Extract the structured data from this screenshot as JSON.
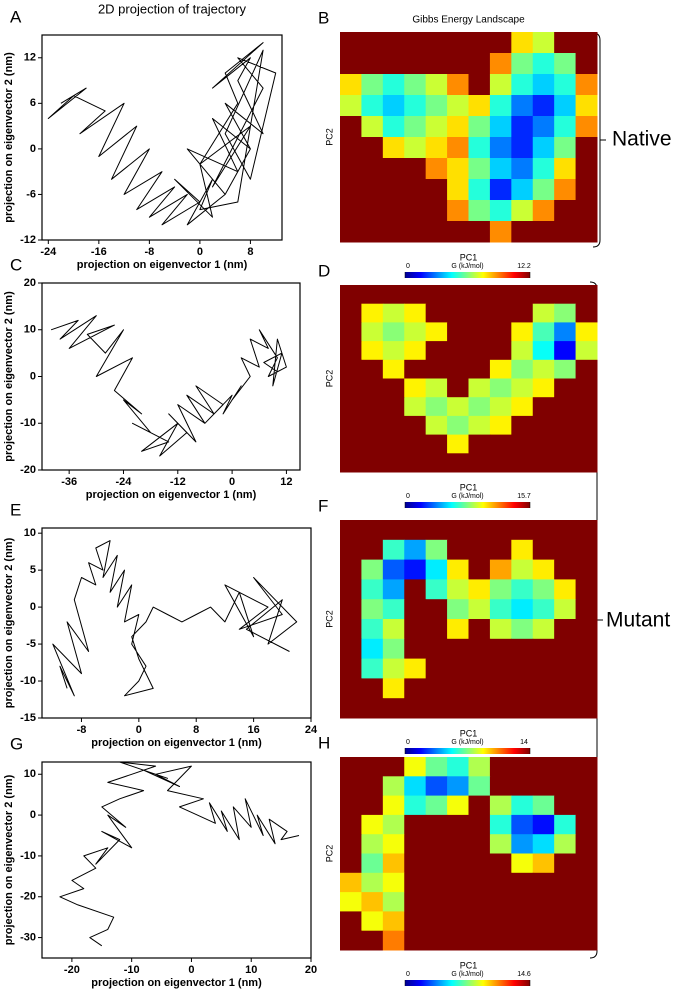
{
  "annotations": [
    "Native",
    "Mutant"
  ],
  "chart_data": [
    {
      "panel": "A",
      "type": "line",
      "title": "2D projection of trajectory",
      "xlabel": "projection on eigenvector 1 (nm)",
      "ylabel": "projection on eigenvector 2 (nm)",
      "color": "#000000",
      "xlim": [
        -25,
        13
      ],
      "ylim": [
        -12,
        15
      ],
      "xticks": [
        -24,
        -16,
        -8,
        0,
        8
      ],
      "yticks": [
        -12,
        -6,
        0,
        6,
        12
      ],
      "x": [
        -22,
        -18,
        -24,
        -20,
        -15,
        -19,
        -12,
        -16,
        -10,
        -14,
        -8,
        -12,
        -6,
        -10,
        -4,
        -8,
        -2,
        -6,
        0,
        -4,
        2,
        0,
        4,
        -2,
        6,
        2,
        8,
        4,
        10,
        6,
        8,
        2,
        10,
        4,
        6,
        0,
        8,
        2,
        10,
        6,
        12,
        8,
        4,
        10,
        6,
        0,
        2,
        -2,
        4,
        8
      ],
      "values": [
        6,
        8,
        4,
        7,
        5,
        2,
        6,
        -1,
        3,
        -4,
        0,
        -6,
        -3,
        -8,
        -5,
        -9,
        -6,
        -10,
        -7,
        -4,
        -9,
        -2,
        -6,
        0,
        -3,
        4,
        0,
        6,
        2,
        9,
        12,
        8,
        14,
        10,
        6,
        -2,
        3,
        -5,
        8,
        12,
        10,
        -4,
        2,
        13,
        -7,
        -8,
        -4,
        -10,
        -6,
        0
      ]
    },
    {
      "panel": "B",
      "type": "heatmap",
      "title": "Gibbs Energy Landscape",
      "xlabel": "PC1",
      "ylabel": "PC2",
      "colorbar_label": "G (kJ/mol)",
      "zlim": [
        0,
        12.2
      ],
      "cticks": [
        0,
        12.2
      ],
      "z": [
        [
          12.2,
          12.2,
          12.2,
          12.2,
          12.2,
          12.2,
          12.2,
          12.2,
          8,
          7,
          12.2,
          12.2
        ],
        [
          12.2,
          12.2,
          12.2,
          12.2,
          12.2,
          12.2,
          12.2,
          9,
          6,
          5,
          6,
          12.2
        ],
        [
          8,
          6,
          5,
          6,
          7,
          9,
          12.2,
          7,
          5,
          4,
          5,
          9
        ],
        [
          7,
          5,
          4,
          5,
          6,
          7,
          8,
          5,
          3,
          2,
          4,
          8
        ],
        [
          12.2,
          7,
          5,
          6,
          7,
          8,
          6,
          4,
          2,
          3,
          5,
          9
        ],
        [
          12.2,
          12.2,
          8,
          7,
          8,
          9,
          5,
          3,
          2,
          4,
          6,
          12.2
        ],
        [
          12.2,
          12.2,
          12.2,
          12.2,
          9,
          8,
          6,
          4,
          3,
          5,
          8,
          12.2
        ],
        [
          12.2,
          12.2,
          12.2,
          12.2,
          12.2,
          8,
          5,
          2,
          4,
          6,
          9,
          12.2
        ],
        [
          12.2,
          12.2,
          12.2,
          12.2,
          12.2,
          9,
          6,
          5,
          7,
          9,
          12.2,
          12.2
        ],
        [
          12.2,
          12.2,
          12.2,
          12.2,
          12.2,
          12.2,
          12.2,
          9,
          12.2,
          12.2,
          12.2,
          12.2
        ]
      ]
    },
    {
      "panel": "C",
      "type": "line",
      "xlabel": "projection on eigenvector 1 (nm)",
      "ylabel": "projection on eigenvector 2 (nm)",
      "color": "#000000",
      "xlim": [
        -42,
        15
      ],
      "ylim": [
        -20,
        20
      ],
      "xticks": [
        -36,
        -24,
        -12,
        0,
        12
      ],
      "yticks": [
        -20,
        -10,
        0,
        10,
        20
      ],
      "x": [
        -40,
        -34,
        -38,
        -30,
        -36,
        -26,
        -32,
        -28,
        -24,
        -30,
        -22,
        -26,
        -20,
        -24,
        -18,
        -22,
        -14,
        -20,
        -12,
        -16,
        -10,
        -14,
        -8,
        -12,
        -6,
        -10,
        -4,
        -8,
        -2,
        -6,
        0,
        -2,
        2,
        0,
        4,
        2,
        6,
        4,
        8,
        6,
        10,
        8,
        12,
        10,
        9,
        11,
        7,
        10
      ],
      "values": [
        10,
        12,
        8,
        13,
        6,
        11,
        9,
        5,
        10,
        0,
        4,
        -3,
        -8,
        -5,
        -12,
        -10,
        -14,
        -16,
        -10,
        -17,
        -12,
        -8,
        -14,
        -6,
        -10,
        -4,
        -8,
        -2,
        -6,
        -10,
        -4,
        -8,
        -2,
        -5,
        0,
        4,
        2,
        8,
        6,
        10,
        4,
        0,
        2,
        8,
        -2,
        5,
        3,
        1
      ]
    },
    {
      "panel": "D",
      "type": "heatmap",
      "xlabel": "PC1",
      "ylabel": "PC2",
      "colorbar_label": "G (kJ/mol)",
      "zlim": [
        0,
        15.7
      ],
      "cticks": [
        0,
        15.7
      ],
      "z": [
        [
          15.7,
          15.7,
          15.7,
          15.7,
          15.7,
          15.7,
          15.7,
          15.7,
          15.7,
          15.7,
          15.7,
          15.7
        ],
        [
          15.7,
          10,
          9,
          10,
          15.7,
          15.7,
          15.7,
          15.7,
          15.7,
          9,
          8,
          15.7
        ],
        [
          15.7,
          9,
          8,
          9,
          10,
          15.7,
          15.7,
          15.7,
          10,
          7,
          4,
          10
        ],
        [
          15.7,
          10,
          9,
          10,
          15.7,
          15.7,
          15.7,
          15.7,
          9,
          6,
          2,
          9
        ],
        [
          15.7,
          15.7,
          10,
          15.7,
          15.7,
          15.7,
          15.7,
          10,
          8,
          9,
          8,
          15.7
        ],
        [
          15.7,
          15.7,
          15.7,
          10,
          9,
          15.7,
          9,
          8,
          9,
          10,
          15.7,
          15.7
        ],
        [
          15.7,
          15.7,
          15.7,
          9,
          8,
          9,
          8,
          9,
          10,
          15.7,
          15.7,
          15.7
        ],
        [
          15.7,
          15.7,
          15.7,
          15.7,
          9,
          8,
          9,
          10,
          15.7,
          15.7,
          15.7,
          15.7
        ],
        [
          15.7,
          15.7,
          15.7,
          15.7,
          15.7,
          10,
          15.7,
          15.7,
          15.7,
          15.7,
          15.7,
          15.7
        ],
        [
          15.7,
          15.7,
          15.7,
          15.7,
          15.7,
          15.7,
          15.7,
          15.7,
          15.7,
          15.7,
          15.7,
          15.7
        ]
      ]
    },
    {
      "panel": "E",
      "type": "line",
      "xlabel": "projection on eigenvector 1 (nm)",
      "ylabel": "projection on eigenvector 2 (nm)",
      "color": "#000000",
      "xlim": [
        -13.5,
        24
      ],
      "ylim": [
        -15,
        10.7
      ],
      "xticks": [
        -8,
        0,
        8,
        16,
        24
      ],
      "yticks": [
        -15,
        -10,
        -5,
        0,
        5,
        10
      ],
      "x": [
        -10,
        -11,
        -9,
        -12,
        -8,
        -10,
        -7,
        -9,
        -8,
        -6,
        -7,
        -5,
        -6,
        -4,
        -5,
        -3,
        -4,
        -2,
        -3,
        -1,
        -2,
        0,
        -1,
        1,
        0,
        -2,
        2,
        0,
        -1,
        1,
        2,
        4,
        6,
        8,
        10,
        12,
        14,
        16,
        12,
        18,
        14,
        20,
        16,
        22,
        18,
        20,
        15,
        21
      ],
      "values": [
        -11,
        -8,
        -12,
        -5,
        -9,
        -2,
        -6,
        1,
        4,
        3,
        6,
        5,
        8,
        9,
        4,
        7,
        2,
        5,
        0,
        3,
        -2,
        -1,
        -5,
        -8,
        -10,
        -12,
        -11,
        -7,
        -4,
        -2,
        0,
        -1,
        -2,
        -1,
        0,
        -2,
        2,
        -4,
        3,
        0,
        -3,
        -1,
        4,
        -2,
        -5,
        1,
        -3,
        -6
      ]
    },
    {
      "panel": "F",
      "type": "heatmap",
      "xlabel": "PC1",
      "ylabel": "PC2",
      "colorbar_label": "G (kJ/mol)",
      "zlim": [
        0,
        14
      ],
      "cticks": [
        0,
        14
      ],
      "z": [
        [
          14,
          14,
          14,
          14,
          14,
          14,
          14,
          14,
          14,
          14,
          14,
          14
        ],
        [
          14,
          14,
          6,
          4,
          7,
          14,
          14,
          14,
          9,
          14,
          14,
          14
        ],
        [
          14,
          7,
          3,
          2,
          5,
          9,
          14,
          10,
          8,
          9,
          14,
          14
        ],
        [
          14,
          6,
          4,
          14,
          6,
          8,
          9,
          7,
          6,
          7,
          9,
          14
        ],
        [
          14,
          7,
          6,
          14,
          14,
          7,
          8,
          6,
          5,
          6,
          8,
          14
        ],
        [
          14,
          6,
          8,
          14,
          14,
          9,
          14,
          8,
          7,
          8,
          14,
          14
        ],
        [
          14,
          5,
          7,
          14,
          14,
          14,
          14,
          14,
          14,
          14,
          14,
          14
        ],
        [
          14,
          6,
          8,
          9,
          14,
          14,
          14,
          14,
          14,
          14,
          14,
          14
        ],
        [
          14,
          14,
          9,
          14,
          14,
          14,
          14,
          14,
          14,
          14,
          14,
          14
        ],
        [
          14,
          14,
          14,
          14,
          14,
          14,
          14,
          14,
          14,
          14,
          14,
          14
        ]
      ]
    },
    {
      "panel": "G",
      "type": "line",
      "xlabel": "projection on eigenvector 1 (nm)",
      "ylabel": "projection on eigenvector 2 (nm)",
      "color": "#000000",
      "xlim": [
        -25,
        20
      ],
      "ylim": [
        -35,
        13
      ],
      "xticks": [
        -20,
        -10,
        0,
        10,
        20
      ],
      "yticks": [
        -30,
        -20,
        -10,
        0,
        10
      ],
      "x": [
        -15,
        -17,
        -14,
        -13,
        -19,
        -22,
        -18,
        -20,
        -16,
        -18,
        -14,
        -16,
        -12,
        -15,
        -10,
        -13,
        -14,
        -11,
        -15,
        -12,
        -8,
        -14,
        -10,
        -6,
        -12,
        -4,
        -8,
        -2,
        -6,
        0,
        -4,
        2,
        -2,
        1,
        4,
        3,
        6,
        5,
        8,
        7,
        10,
        9,
        12,
        11,
        14,
        13,
        16,
        15,
        18
      ],
      "values": [
        -32,
        -30,
        -28,
        -25,
        -22,
        -20,
        -18,
        -16,
        -13,
        -10,
        -8,
        -12,
        -6,
        -4,
        -8,
        -2,
        0,
        -3,
        2,
        4,
        6,
        8,
        10,
        12,
        13,
        9,
        11,
        7,
        10,
        12,
        6,
        4,
        2,
        0,
        -2,
        3,
        -4,
        1,
        -6,
        2,
        -3,
        4,
        -5,
        0,
        -7,
        -1,
        -4,
        -6,
        -5
      ]
    },
    {
      "panel": "H",
      "type": "heatmap",
      "xlabel": "PC1",
      "ylabel": "PC2",
      "colorbar_label": "G (kJ/mol)",
      "zlim": [
        0,
        14.6
      ],
      "cticks": [
        0,
        14.6
      ],
      "z": [
        [
          14.6,
          14.6,
          14.6,
          9,
          7,
          6,
          8,
          14.6,
          14.6,
          14.6,
          14.6,
          14.6
        ],
        [
          14.6,
          14.6,
          8,
          5,
          3,
          4,
          7,
          14.6,
          14.6,
          14.6,
          14.6,
          14.6
        ],
        [
          14.6,
          14.6,
          9,
          6,
          7,
          9,
          14.6,
          8,
          6,
          7,
          14.6,
          14.6
        ],
        [
          14.6,
          9,
          8,
          14.6,
          14.6,
          14.6,
          14.6,
          6,
          3,
          2,
          6,
          14.6
        ],
        [
          14.6,
          8,
          9,
          14.6,
          14.6,
          14.6,
          14.6,
          8,
          4,
          5,
          8,
          14.6
        ],
        [
          14.6,
          7,
          10,
          14.6,
          14.6,
          14.6,
          14.6,
          14.6,
          9,
          10,
          14.6,
          14.6
        ],
        [
          10,
          8,
          9,
          14.6,
          14.6,
          14.6,
          14.6,
          14.6,
          14.6,
          14.6,
          14.6,
          14.6
        ],
        [
          9,
          10,
          8,
          14.6,
          14.6,
          14.6,
          14.6,
          14.6,
          14.6,
          14.6,
          14.6,
          14.6
        ],
        [
          14.6,
          9,
          10,
          14.6,
          14.6,
          14.6,
          14.6,
          14.6,
          14.6,
          14.6,
          14.6,
          14.6
        ],
        [
          14.6,
          14.6,
          11,
          14.6,
          14.6,
          14.6,
          14.6,
          14.6,
          14.6,
          14.6,
          14.6,
          14.6
        ]
      ]
    }
  ]
}
